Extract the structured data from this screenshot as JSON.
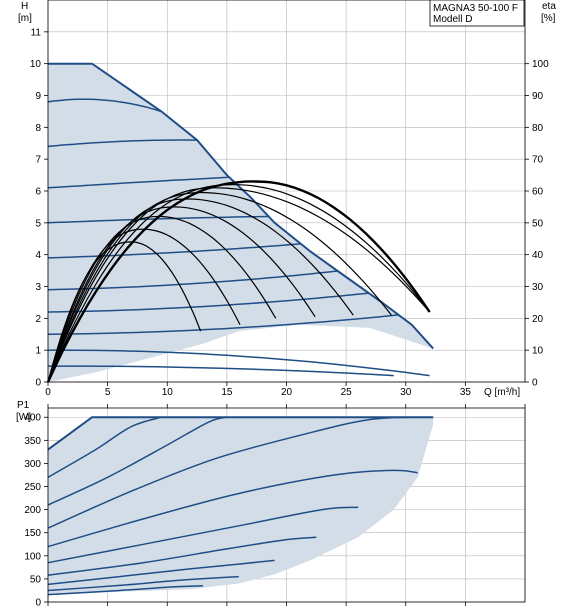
{
  "chart_data": [
    {
      "type": "line",
      "name": "head-efficiency",
      "model_label": [
        "MAGNA3 50-100 F",
        "Modell D"
      ],
      "left_axis": {
        "label_line1": "H",
        "label_line2": "[m]",
        "ylim": [
          0,
          12
        ],
        "ticks": [
          0,
          1,
          2,
          3,
          4,
          5,
          6,
          7,
          8,
          9,
          10,
          11
        ]
      },
      "right_axis": {
        "label_line1": "eta",
        "label_line2": "[%]",
        "ylim": [
          0,
          120
        ],
        "ticks": [
          0,
          10,
          20,
          30,
          40,
          50,
          60,
          70,
          80,
          90,
          100
        ]
      },
      "x_axis": {
        "label": "Q [m³/h]",
        "xlim": [
          0,
          40
        ],
        "ticks": [
          0,
          5,
          10,
          15,
          20,
          25,
          30,
          35
        ]
      },
      "operating_area": {
        "top": [
          [
            0,
            10
          ],
          [
            3.7,
            10
          ]
        ],
        "max_curve": [
          [
            3.7,
            10
          ],
          [
            9.5,
            8.5
          ],
          [
            12.5,
            7.6
          ],
          [
            15,
            6.5
          ],
          [
            17,
            5.8
          ],
          [
            19,
            5.0
          ],
          [
            22,
            4.1
          ],
          [
            25,
            3.3
          ],
          [
            28,
            2.5
          ],
          [
            30.5,
            1.8
          ],
          [
            32.3,
            1.05
          ]
        ],
        "min_curve": [
          [
            0,
            0
          ],
          [
            4,
            0.3
          ],
          [
            9,
            0.8
          ],
          [
            13,
            1.2
          ],
          [
            16,
            1.6
          ],
          [
            21,
            1.8
          ],
          [
            27,
            1.7
          ],
          [
            32.3,
            1.05
          ]
        ]
      },
      "head_curves": [
        {
          "h0": 8.8,
          "q_end": 9.5
        },
        {
          "h0": 7.4,
          "q_end": 12.5
        },
        {
          "h0": 6.1,
          "q_end": 15.2
        },
        {
          "h0": 5.0,
          "q_end": 18.5
        },
        {
          "h0": 3.9,
          "q_end": 21.2
        },
        {
          "h0": 2.9,
          "q_end": 24.3
        },
        {
          "h0": 2.2,
          "q_end": 26.9
        },
        {
          "h0": 1.5,
          "q_end": 29.4
        },
        {
          "h0": 1.0,
          "q_end": 32.0
        },
        {
          "h0": 0.5,
          "q_end": 29.0
        }
      ],
      "efficiency_curves": [
        {
          "q_peak": 7.0,
          "eta_peak": 44,
          "q_end": 12.8,
          "eta_end": 16,
          "bold": false
        },
        {
          "q_peak": 8.0,
          "eta_peak": 48,
          "q_end": 16.1,
          "eta_end": 18,
          "bold": false
        },
        {
          "q_peak": 9.3,
          "eta_peak": 52,
          "q_end": 19.1,
          "eta_end": 20,
          "bold": false
        },
        {
          "q_peak": 10.6,
          "eta_peak": 55,
          "q_end": 22.4,
          "eta_end": 20.5,
          "bold": false
        },
        {
          "q_peak": 11.7,
          "eta_peak": 57.5,
          "q_end": 25.6,
          "eta_end": 21,
          "bold": false
        },
        {
          "q_peak": 12.9,
          "eta_peak": 59.5,
          "q_end": 28.8,
          "eta_end": 21,
          "bold": false
        },
        {
          "q_peak": 14.0,
          "eta_peak": 61,
          "q_end": 32.0,
          "eta_end": 22,
          "bold": false
        },
        {
          "q_peak": 15.6,
          "eta_peak": 62,
          "q_end": 32.0,
          "eta_end": 22,
          "bold": false
        },
        {
          "q_peak": 17.5,
          "eta_peak": 63,
          "q_end": 32.0,
          "eta_end": 22,
          "bold": true
        }
      ]
    },
    {
      "type": "line",
      "name": "power",
      "left_axis": {
        "label_line1": "P1",
        "label_line2": "[W]",
        "ylim": [
          0,
          420
        ],
        "ticks": [
          0,
          50,
          100,
          150,
          200,
          250,
          300,
          350,
          400
        ]
      },
      "x_axis": {
        "xlim": [
          0,
          40
        ]
      },
      "operating_area": {
        "upper": [
          [
            0,
            330
          ],
          [
            3.7,
            400
          ],
          [
            32.3,
            400
          ]
        ],
        "lower": [
          [
            0,
            15
          ],
          [
            6,
            22
          ],
          [
            12,
            28
          ],
          [
            16,
            40
          ],
          [
            19,
            60
          ],
          [
            22,
            90
          ],
          [
            26,
            140
          ],
          [
            29,
            200
          ],
          [
            31,
            270
          ],
          [
            32.3,
            385
          ],
          [
            32.3,
            400
          ]
        ]
      },
      "power_curves": [
        {
          "points": [
            [
              0,
              330
            ],
            [
              3.7,
              400
            ]
          ]
        },
        {
          "points": [
            [
              0,
              270
            ],
            [
              4,
              330
            ],
            [
              7,
              380
            ],
            [
              9.5,
              400
            ]
          ]
        },
        {
          "points": [
            [
              0,
              210
            ],
            [
              5,
              270
            ],
            [
              10,
              340
            ],
            [
              13.5,
              390
            ],
            [
              15,
              400
            ]
          ]
        },
        {
          "points": [
            [
              0,
              160
            ],
            [
              7,
              240
            ],
            [
              14,
              310
            ],
            [
              21,
              360
            ],
            [
              27,
              395
            ],
            [
              32,
              400
            ]
          ]
        },
        {
          "points": [
            [
              0,
              120
            ],
            [
              8,
              180
            ],
            [
              16,
              235
            ],
            [
              24,
              275
            ],
            [
              29,
              285
            ],
            [
              31,
              280
            ]
          ]
        },
        {
          "points": [
            [
              0,
              85
            ],
            [
              8,
              125
            ],
            [
              16,
              165
            ],
            [
              23,
              200
            ],
            [
              26,
              205
            ]
          ]
        },
        {
          "points": [
            [
              0,
              58
            ],
            [
              8,
              85
            ],
            [
              15,
              115
            ],
            [
              20,
              135
            ],
            [
              22.5,
              140
            ]
          ]
        },
        {
          "points": [
            [
              0,
              38
            ],
            [
              6,
              55
            ],
            [
              12,
              72
            ],
            [
              16,
              82
            ],
            [
              19,
              90
            ]
          ]
        },
        {
          "points": [
            [
              0,
              25
            ],
            [
              6,
              36
            ],
            [
              11,
              47
            ],
            [
              16,
              55
            ]
          ]
        },
        {
          "points": [
            [
              0,
              16
            ],
            [
              6,
              25
            ],
            [
              10,
              32
            ],
            [
              13,
              35
            ]
          ]
        }
      ]
    }
  ]
}
